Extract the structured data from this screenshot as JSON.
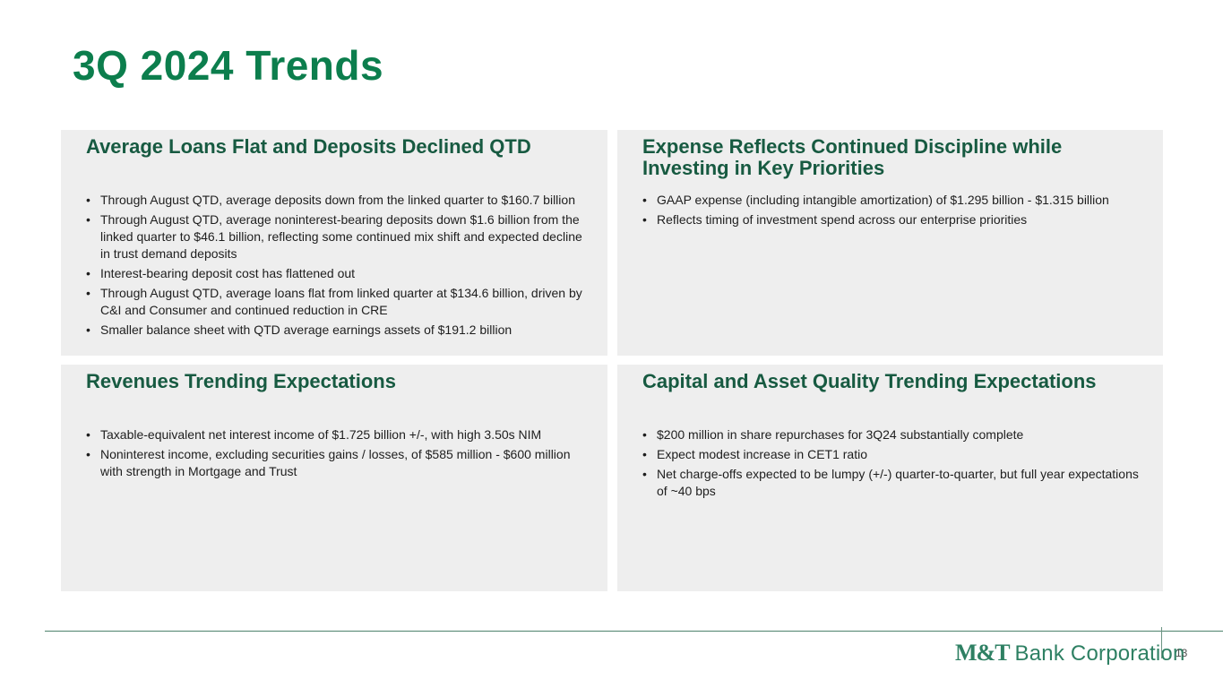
{
  "title": "3Q 2024 Trends",
  "glyphs": {
    "bullet": "•"
  },
  "cards": [
    {
      "title": "Average Loans Flat and Deposits Declined QTD",
      "bullets": [
        "Through August QTD, average deposits down from the linked quarter to $160.7 billion",
        "Through August QTD, average noninterest-bearing deposits down $1.6 billion from the linked quarter to $46.1 billion, reflecting some continued mix shift and expected decline in trust demand deposits",
        "Interest-bearing deposit cost has flattened out",
        "Through August QTD, average loans flat from linked quarter at $134.6 billion, driven by C&I and Consumer and continued reduction in CRE",
        "Smaller balance sheet with QTD average earnings assets of $191.2 billion"
      ]
    },
    {
      "title": "Expense Reflects Continued Discipline while Investing in Key Priorities",
      "bullets": [
        "GAAP expense (including intangible amortization) of $1.295 billion - $1.315 billion",
        "Reflects timing of investment spend across our enterprise priorities"
      ]
    },
    {
      "title": "Revenues Trending Expectations",
      "bullets": [
        "Taxable-equivalent net interest income of $1.725 billion +/-, with high 3.50s NIM",
        "Noninterest income, excluding securities gains / losses, of $585 million - $600 million with strength in Mortgage and Trust"
      ]
    },
    {
      "title": "Capital and Asset Quality Trending Expectations",
      "bullets": [
        "$200 million in share repurchases for 3Q24 substantially complete",
        "Expect modest increase in CET1 ratio",
        "Net charge-offs expected to be lumpy (+/-) quarter-to-quarter, but full year expectations of ~40 bps"
      ]
    }
  ],
  "footer": {
    "logo_prefix": "M&T",
    "logo_suffix": "Bank Corporation",
    "page_number": "13"
  },
  "colors": {
    "title_green": "#0c7e4d",
    "card_heading_green": "#175a41",
    "logo_green": "#2e8063",
    "card_background": "#eeeeee",
    "footer_line_green": "#4d826c"
  }
}
